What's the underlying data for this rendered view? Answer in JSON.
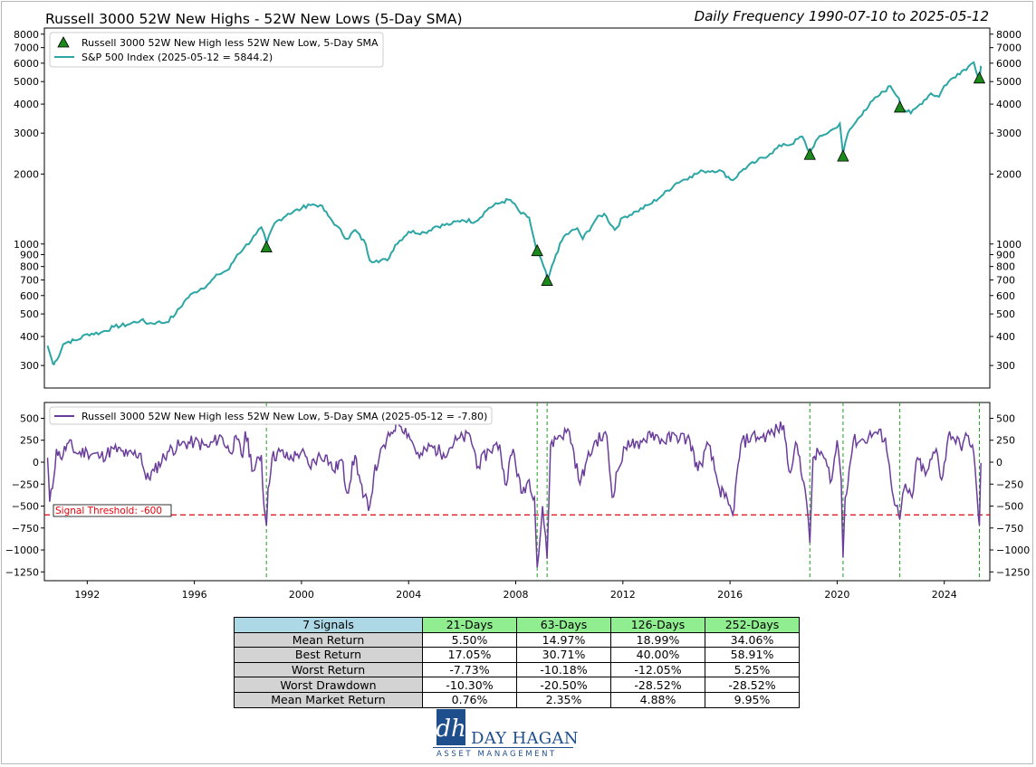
{
  "header": {
    "title": "Russell 3000 52W New Highs - 52W New Lows (5-Day SMA)",
    "frequency": "Daily Frequency 1990-07-10 to 2025-05-12"
  },
  "colors": {
    "spx": "#2ca6a4",
    "indicator": "#6a3d9a",
    "signal_marker": "#1a8a1a",
    "threshold": "#e8000b",
    "signal_line": "#1f9e1f"
  },
  "chart_data": [
    {
      "type": "line",
      "name": "top-panel",
      "yscale": "log",
      "ylim": [
        240,
        8500
      ],
      "xlim": [
        1990.4,
        2025.7
      ],
      "yticks": [
        300,
        400,
        500,
        600,
        700,
        800,
        900,
        1000,
        2000,
        3000,
        4000,
        5000,
        6000,
        7000,
        8000
      ],
      "ytick_labels": [
        "300",
        "400",
        "500",
        "600",
        "700",
        "800",
        "900",
        "1000",
        "2000",
        "3000",
        "4000",
        "5000",
        "6000",
        "7000",
        "8000"
      ],
      "legend": {
        "position": "top-left",
        "marker_label": "Russell 3000 52W New High less 52W New Low, 5-Day SMA",
        "line_label": "S&P 500 Index (2025-05-12 = 5844.2)"
      },
      "series": [
        {
          "name": "S&P 500 Index",
          "x": [
            1990.52,
            1990.6,
            1990.72,
            1990.8,
            1990.95,
            1991.1,
            1991.3,
            1991.6,
            1992.0,
            1992.5,
            1993.0,
            1993.5,
            1994.0,
            1994.3,
            1994.6,
            1994.95,
            1995.3,
            1995.7,
            1996.0,
            1996.5,
            1996.9,
            1997.3,
            1997.6,
            1997.85,
            1998.3,
            1998.5,
            1998.7,
            1999.0,
            1999.5,
            2000.0,
            2000.25,
            2000.7,
            2001.0,
            2001.3,
            2001.7,
            2002.0,
            2002.4,
            2002.55,
            2002.8,
            2003.2,
            2003.5,
            2004.0,
            2004.6,
            2005.0,
            2005.6,
            2006.0,
            2006.5,
            2007.0,
            2007.5,
            2007.8,
            2008.2,
            2008.5,
            2008.8,
            2008.95,
            2009.2,
            2009.5,
            2009.8,
            2010.3,
            2010.5,
            2011.0,
            2011.3,
            2011.7,
            2012.0,
            2012.5,
            2013.0,
            2013.5,
            2014.0,
            2014.5,
            2015.0,
            2015.6,
            2016.1,
            2016.5,
            2017.0,
            2017.5,
            2018.0,
            2018.2,
            2018.7,
            2018.98,
            2019.2,
            2019.5,
            2019.9,
            2020.1,
            2020.22,
            2020.4,
            2020.7,
            2021.0,
            2021.5,
            2021.99,
            2022.3,
            2022.45,
            2022.75,
            2023.0,
            2023.5,
            2023.8,
            2024.0,
            2024.5,
            2024.9,
            2025.1,
            2025.3,
            2025.37
          ],
          "y": [
            365,
            340,
            305,
            312,
            330,
            370,
            380,
            385,
            410,
            415,
            440,
            450,
            470,
            455,
            460,
            460,
            500,
            580,
            620,
            670,
            740,
            780,
            900,
            960,
            1100,
            1180,
            1010,
            1230,
            1350,
            1420,
            1480,
            1470,
            1320,
            1200,
            1050,
            1150,
            1000,
            850,
            850,
            850,
            990,
            1130,
            1120,
            1190,
            1220,
            1270,
            1250,
            1430,
            1520,
            1550,
            1350,
            1300,
            900,
            860,
            700,
            900,
            1080,
            1170,
            1050,
            1280,
            1350,
            1150,
            1300,
            1380,
            1480,
            1630,
            1830,
            1950,
            2060,
            2080,
            1880,
            2100,
            2270,
            2450,
            2700,
            2660,
            2900,
            2450,
            2780,
            2950,
            3140,
            3300,
            2450,
            3000,
            3350,
            3750,
            4300,
            4780,
            4250,
            3820,
            3650,
            3900,
            4450,
            4300,
            4800,
            5400,
            5800,
            6050,
            5100,
            5840
          ]
        },
        {
          "name": "Signal markers",
          "x": [
            1998.69,
            2008.8,
            2009.17,
            2018.98,
            2020.22,
            2022.34,
            2025.31
          ],
          "y": [
            975,
            940,
            700,
            2440,
            2400,
            3900,
            5200
          ]
        }
      ]
    },
    {
      "type": "line",
      "name": "bottom-panel",
      "ylim": [
        -1350,
        680
      ],
      "xlim": [
        1990.4,
        2025.7
      ],
      "yticks": [
        -1250,
        -1000,
        -750,
        -500,
        -250,
        0,
        250,
        500
      ],
      "ytick_labels": [
        "−1250",
        "−1000",
        "−750",
        "−500",
        "−250",
        "0",
        "250",
        "500"
      ],
      "xticks": [
        1992,
        1996,
        2000,
        2004,
        2008,
        2012,
        2016,
        2020,
        2024
      ],
      "xtick_labels": [
        "1992",
        "1996",
        "2000",
        "2004",
        "2008",
        "2012",
        "2016",
        "2020",
        "2024"
      ],
      "threshold": -600,
      "threshold_label": "Signal  Threshold: -600",
      "signal_dates": [
        1998.69,
        2008.8,
        2009.17,
        2018.98,
        2020.22,
        2022.34,
        2025.31
      ],
      "legend": {
        "position": "top-left",
        "line_label": "Russell 3000 52W New High less 52W New Low, 5-Day SMA (2025-05-12 = -7.80)"
      },
      "series": [
        {
          "name": "NH-NL 5-Day SMA",
          "x": [
            1990.52,
            1990.6,
            1990.7,
            1990.85,
            1991.0,
            1991.3,
            1991.6,
            1992.0,
            1992.5,
            1993.0,
            1993.5,
            1994.0,
            1994.2,
            1994.5,
            1995.0,
            1995.5,
            1996.0,
            1996.5,
            1997.0,
            1997.3,
            1997.6,
            1997.8,
            1997.9,
            1998.2,
            1998.5,
            1998.6,
            1998.69,
            1998.75,
            1998.9,
            1999.2,
            1999.5,
            1999.8,
            2000.0,
            2000.3,
            2000.6,
            2000.9,
            2001.2,
            2001.5,
            2001.7,
            2002.0,
            2002.3,
            2002.55,
            2002.7,
            2002.9,
            2003.3,
            2003.6,
            2004.0,
            2004.4,
            2004.8,
            2005.3,
            2005.8,
            2006.3,
            2006.6,
            2007.0,
            2007.4,
            2007.6,
            2007.9,
            2008.2,
            2008.5,
            2008.7,
            2008.8,
            2008.9,
            2009.0,
            2009.17,
            2009.3,
            2009.6,
            2010.0,
            2010.4,
            2010.6,
            2011.0,
            2011.4,
            2011.6,
            2011.8,
            2012.2,
            2012.6,
            2013.0,
            2013.5,
            2014.0,
            2014.5,
            2014.8,
            2015.2,
            2015.6,
            2015.8,
            2016.1,
            2016.4,
            2016.8,
            2017.2,
            2017.6,
            2018.0,
            2018.2,
            2018.5,
            2018.8,
            2018.98,
            2019.1,
            2019.4,
            2019.8,
            2020.0,
            2020.15,
            2020.22,
            2020.3,
            2020.6,
            2021.0,
            2021.4,
            2021.8,
            2022.0,
            2022.2,
            2022.34,
            2022.5,
            2022.8,
            2023.0,
            2023.3,
            2023.7,
            2023.9,
            2024.2,
            2024.6,
            2024.9,
            2025.1,
            2025.25,
            2025.31,
            2025.37
          ],
          "y": [
            50,
            -450,
            -300,
            150,
            50,
            220,
            100,
            120,
            60,
            150,
            80,
            100,
            -200,
            -100,
            120,
            200,
            230,
            170,
            300,
            120,
            260,
            50,
            350,
            -100,
            80,
            -500,
            -720,
            -300,
            50,
            120,
            40,
            80,
            120,
            -50,
            60,
            80,
            -100,
            30,
            -350,
            80,
            -400,
            -500,
            -150,
            50,
            300,
            480,
            320,
            50,
            180,
            100,
            250,
            300,
            -50,
            140,
            200,
            -250,
            150,
            -350,
            -200,
            -400,
            -1200,
            -900,
            -500,
            -1100,
            200,
            300,
            350,
            -250,
            -30,
            250,
            300,
            -400,
            -100,
            250,
            150,
            350,
            240,
            300,
            250,
            -100,
            200,
            -300,
            -400,
            -600,
            200,
            300,
            280,
            340,
            420,
            -100,
            200,
            -300,
            -920,
            50,
            120,
            -200,
            250,
            -200,
            -1080,
            -400,
            240,
            250,
            340,
            280,
            -200,
            -500,
            -650,
            -300,
            -400,
            50,
            -150,
            150,
            -200,
            350,
            180,
            300,
            100,
            -500,
            -720,
            -8
          ]
        }
      ]
    }
  ],
  "stats": {
    "corner": "7 Signals",
    "headers": [
      "21-Days",
      "63-Days",
      "126-Days",
      "252-Days"
    ],
    "rows": [
      {
        "label": "Mean Return",
        "values": [
          "5.50%",
          "14.97%",
          "18.99%",
          "34.06%"
        ]
      },
      {
        "label": "Best Return",
        "values": [
          "17.05%",
          "30.71%",
          "40.00%",
          "58.91%"
        ]
      },
      {
        "label": "Worst Return",
        "values": [
          "-7.73%",
          "-10.18%",
          "-12.05%",
          "5.25%"
        ]
      },
      {
        "label": "Worst Drawdown",
        "values": [
          "-10.30%",
          "-20.50%",
          "-28.52%",
          "-28.52%"
        ]
      },
      {
        "label": "Mean Market Return",
        "values": [
          "0.76%",
          "2.35%",
          "4.88%",
          "9.95%"
        ]
      }
    ]
  },
  "logo": {
    "name": "DAY HAGAN",
    "sub": "ASSET MANAGEMENT",
    "mark": "dh"
  }
}
